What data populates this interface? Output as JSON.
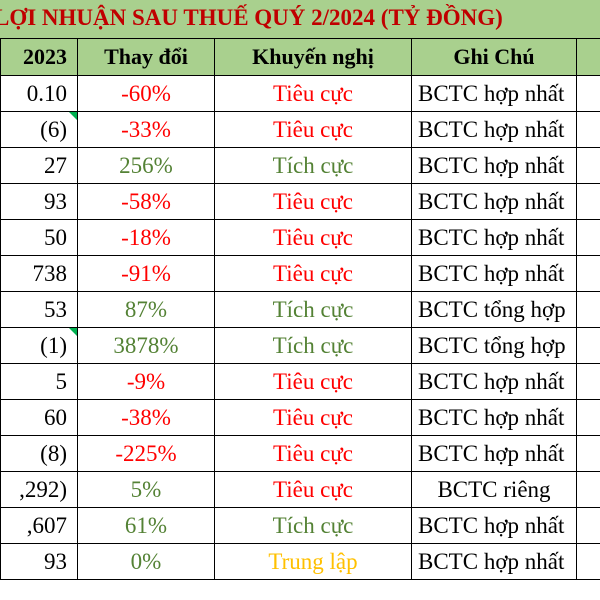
{
  "title": "LỢI NHUẬN SAU THUẾ QUÝ 2/2024 (TỶ ĐỒNG)",
  "headers": [
    "2023",
    "Thay đổi",
    "Khuyến nghị",
    "Ghi Chú"
  ],
  "colors": {
    "header_bg": "#a9d08e",
    "title_text": "#c00000",
    "negative": "#ff0000",
    "positive": "#548235",
    "neutral": "#ffc000"
  },
  "rows": [
    {
      "value": "0.10",
      "change": "-60%",
      "rec": "Tiêu cực",
      "note": "BCTC hợp nhất",
      "tone": "neg",
      "flag": false
    },
    {
      "value": "(6)",
      "change": "-33%",
      "rec": "Tiêu cực",
      "note": "BCTC hợp nhất",
      "tone": "neg",
      "flag": true
    },
    {
      "value": "27",
      "change": "256%",
      "rec": "Tích cực",
      "note": "BCTC hợp nhất",
      "tone": "pos",
      "flag": false
    },
    {
      "value": "93",
      "change": "-58%",
      "rec": "Tiêu cực",
      "note": "BCTC hợp nhất",
      "tone": "neg",
      "flag": false
    },
    {
      "value": "50",
      "change": "-18%",
      "rec": "Tiêu cực",
      "note": "BCTC hợp nhất",
      "tone": "neg",
      "flag": false
    },
    {
      "value": "738",
      "change": "-91%",
      "rec": "Tiêu cực",
      "note": "BCTC hợp nhất",
      "tone": "neg",
      "flag": false
    },
    {
      "value": "53",
      "change": "87%",
      "rec": "Tích cực",
      "note": "BCTC tổng hợp",
      "tone": "pos",
      "flag": false
    },
    {
      "value": "(1)",
      "change": "3878%",
      "rec": "Tích cực",
      "note": "BCTC tổng hợp",
      "tone": "pos",
      "flag": true
    },
    {
      "value": "5",
      "change": "-9%",
      "rec": "Tiêu cực",
      "note": "BCTC hợp nhất",
      "tone": "neg",
      "flag": false
    },
    {
      "value": "60",
      "change": "-38%",
      "rec": "Tiêu cực",
      "note": "BCTC hợp nhất",
      "tone": "neg",
      "flag": false
    },
    {
      "value": "(8)",
      "change": "-225%",
      "rec": "Tiêu cực",
      "note": "BCTC hợp nhất",
      "tone": "neg",
      "flag": false
    },
    {
      "value": ",292)",
      "change": "5%",
      "rec": "Tiêu cực",
      "note": "BCTC riêng",
      "tone": "pos",
      "rec_tone": "neg",
      "flag": false,
      "note_center": true
    },
    {
      "value": ",607",
      "change": "61%",
      "rec": "Tích cực",
      "note": "BCTC hợp nhất",
      "tone": "pos",
      "flag": false
    },
    {
      "value": "93",
      "change": "0%",
      "rec": "Trung lập",
      "note": "BCTC hợp nhất",
      "tone": "pos",
      "rec_tone": "neu",
      "flag": false
    }
  ]
}
